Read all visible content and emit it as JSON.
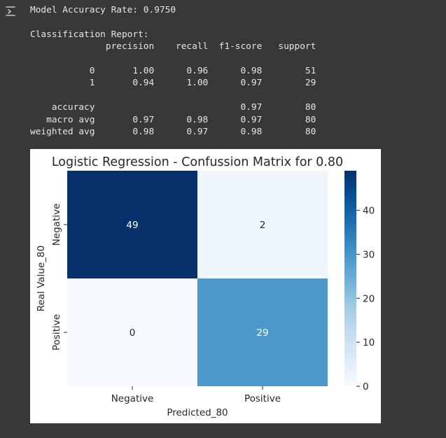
{
  "output": {
    "icon": "output-toggle-icon",
    "accuracy_line": "Model Accuracy Rate: 0.9750",
    "report_header": "Classification Report:",
    "report_columns_line": "              precision    recall  f1-score   support",
    "report_rows": [
      "           0       1.00      0.96      0.98        51",
      "           1       0.94      1.00      0.97        29",
      "",
      "    accuracy                           0.97        80",
      "   macro avg       0.97      0.98      0.97        80",
      "weighted avg       0.98      0.97      0.98        80"
    ]
  },
  "chart_data": {
    "type": "heatmap",
    "title": "Logistic Regression - Confussion Matrix for 0.80",
    "xlabel": "Predicted_80",
    "ylabel": "Real Value_80",
    "x_categories": [
      "Negative",
      "Positive"
    ],
    "y_categories": [
      "Negative",
      "Positive"
    ],
    "values": [
      [
        49,
        2
      ],
      [
        0,
        29
      ]
    ],
    "colormap": "Blues",
    "colorbar": {
      "min": 0,
      "max": 49,
      "ticks": [
        0,
        10,
        20,
        30,
        40
      ]
    },
    "annotations": true
  }
}
